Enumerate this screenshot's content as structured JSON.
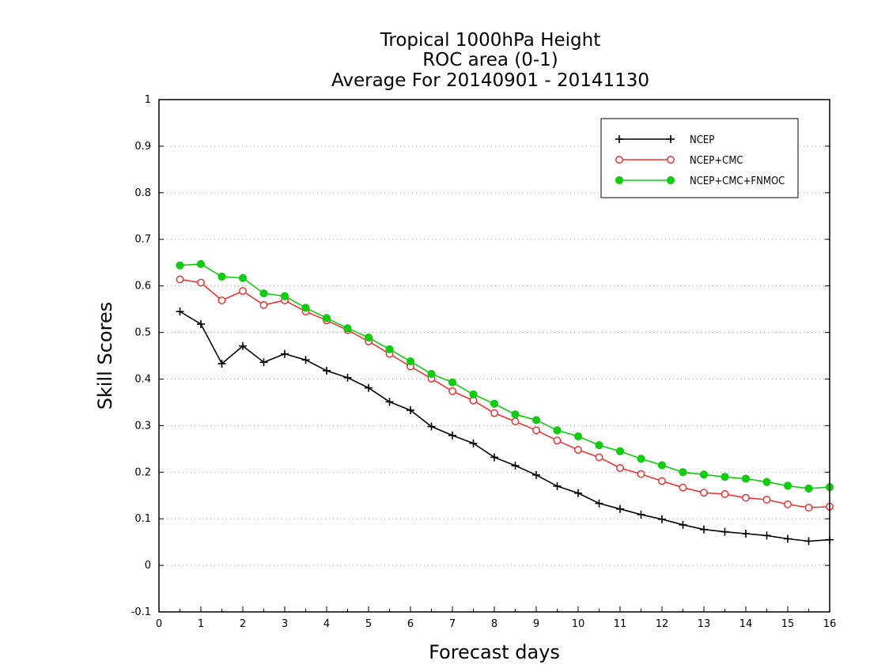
{
  "chart_data": {
    "type": "line",
    "title": [
      "Tropical 1000hPa Height",
      "ROC area (0-1)",
      "Average For 20140901 - 20141130"
    ],
    "xlabel": "Forecast days",
    "ylabel": "Skill Scores",
    "xlim": [
      0,
      16
    ],
    "ylim": [
      -0.1,
      1
    ],
    "x_ticks": [
      "0",
      "1",
      "2",
      "3",
      "4",
      "5",
      "6",
      "7",
      "8",
      "9",
      "10",
      "11",
      "12",
      "13",
      "14",
      "15",
      "16"
    ],
    "y_ticks": [
      "-0.1",
      "0",
      "0.1",
      "0.2",
      "0.3",
      "0.4",
      "0.5",
      "0.6",
      "0.7",
      "0.8",
      "0.9",
      "1"
    ],
    "y_tick_values": [
      -0.1,
      0,
      0.1,
      0.2,
      0.3,
      0.4,
      0.5,
      0.6,
      0.7,
      0.8,
      0.9,
      1
    ],
    "grid": "horizontal dotted",
    "legend_position": "top-right",
    "x": [
      0.5,
      1,
      1.5,
      2,
      2.5,
      3,
      3.5,
      4,
      4.5,
      5,
      5.5,
      6,
      6.5,
      7,
      7.5,
      8,
      8.5,
      9,
      9.5,
      10,
      10.5,
      11,
      11.5,
      12,
      12.5,
      13,
      13.5,
      14,
      14.5,
      15,
      15.5,
      16
    ],
    "series": [
      {
        "name": "NCEP",
        "color": "#000000",
        "marker": "plus",
        "values": [
          0.545,
          0.518,
          0.433,
          0.471,
          0.436,
          0.454,
          0.441,
          0.418,
          0.403,
          0.381,
          0.351,
          0.333,
          0.298,
          0.279,
          0.262,
          0.232,
          0.214,
          0.194,
          0.17,
          0.155,
          0.133,
          0.121,
          0.109,
          0.099,
          0.087,
          0.077,
          0.072,
          0.068,
          0.064,
          0.057,
          0.052,
          0.055
        ]
      },
      {
        "name": "NCEP+CMC",
        "color": "#ee3333",
        "marker": "open-circle",
        "values": [
          0.614,
          0.607,
          0.569,
          0.589,
          0.559,
          0.569,
          0.545,
          0.526,
          0.505,
          0.481,
          0.454,
          0.427,
          0.401,
          0.374,
          0.354,
          0.327,
          0.309,
          0.29,
          0.268,
          0.248,
          0.232,
          0.209,
          0.196,
          0.181,
          0.167,
          0.156,
          0.153,
          0.145,
          0.141,
          0.131,
          0.124,
          0.126
        ]
      },
      {
        "name": "NCEP+CMC+FNMOC",
        "color": "#11cc11",
        "marker": "filled-circle",
        "values": [
          0.644,
          0.647,
          0.62,
          0.617,
          0.584,
          0.578,
          0.553,
          0.531,
          0.509,
          0.489,
          0.464,
          0.438,
          0.411,
          0.393,
          0.367,
          0.347,
          0.324,
          0.312,
          0.29,
          0.277,
          0.258,
          0.245,
          0.229,
          0.215,
          0.2,
          0.195,
          0.19,
          0.186,
          0.179,
          0.171,
          0.165,
          0.168
        ]
      }
    ]
  }
}
